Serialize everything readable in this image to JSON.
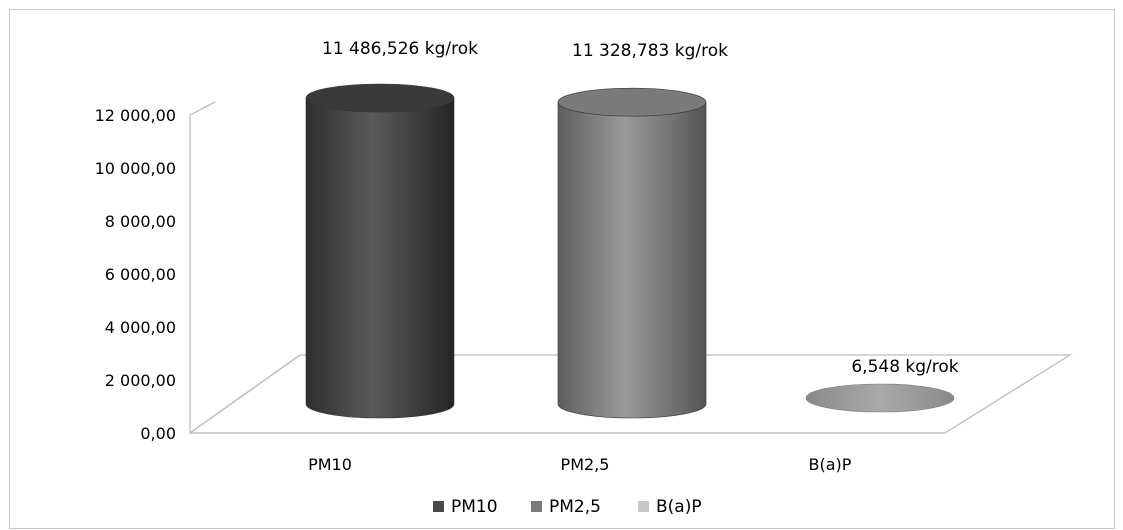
{
  "chart_data": {
    "type": "bar",
    "categories": [
      "PM10",
      "PM2,5",
      "B(a)P"
    ],
    "series": [
      {
        "name": "PM10",
        "values": [
          11486.526,
          null,
          null
        ]
      },
      {
        "name": "PM2,5",
        "values": [
          null,
          11328.783,
          null
        ]
      },
      {
        "name": "B(a)P",
        "values": [
          null,
          null,
          6.548
        ]
      }
    ],
    "values": [
      11486.526,
      11328.783,
      6.548
    ],
    "data_labels": [
      "11 486,526 kg/rok",
      "11 328,783 kg/rok",
      "6,548 kg/rok"
    ],
    "ytick_labels": [
      "0,00",
      "2 000,00",
      "4 000,00",
      "6 000,00",
      "8 000,00",
      "10 000,00",
      "12 000,00"
    ],
    "yticks": [
      0,
      2000,
      4000,
      6000,
      8000,
      10000,
      12000
    ],
    "ylim": [
      0,
      12000
    ],
    "title": "",
    "xlabel": "",
    "ylabel": "",
    "legend_position": "bottom",
    "style": "3d-cylinder",
    "colors": [
      "#4a4a4a",
      "#7a7a7a",
      "#c8c8c8"
    ]
  }
}
